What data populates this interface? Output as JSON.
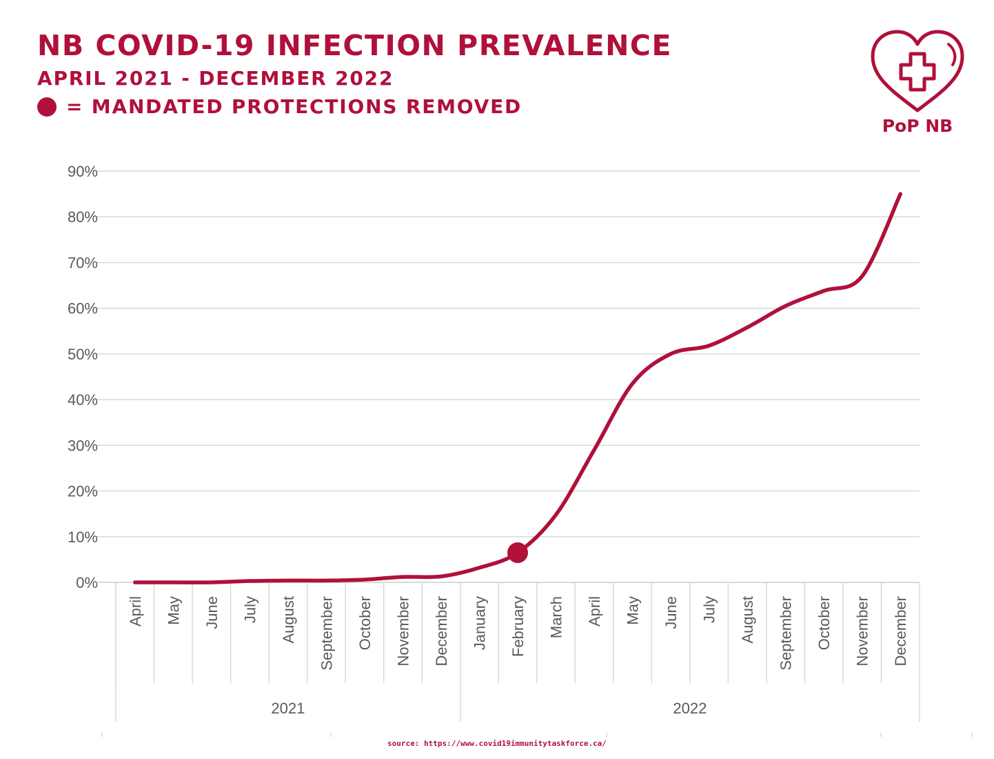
{
  "header": {
    "title": "NB COVID-19 INFECTION PREVALENCE",
    "subtitle": "APRIL 2021 - DECEMBER 2022",
    "legend_text": "= MANDATED PROTECTIONS REMOVED"
  },
  "logo": {
    "text": "PoP NB",
    "icon": "heart-with-medical-cross-icon"
  },
  "source": "source: https://www.covid19immunitytaskforce.ca/",
  "colors": {
    "accent": "#b0103a",
    "grid": "#d9d9d9",
    "axis_text": "#595959",
    "background": "#ffffff"
  },
  "chart_data": {
    "type": "line",
    "title": "NB COVID-19 INFECTION PREVALENCE",
    "subtitle": "APRIL 2021 - DECEMBER 2022",
    "categories": [
      "April",
      "May",
      "June",
      "July",
      "August",
      "September",
      "October",
      "November",
      "December",
      "January",
      "February",
      "March",
      "April",
      "May",
      "June",
      "July",
      "August",
      "September",
      "October",
      "November",
      "December"
    ],
    "years": [
      {
        "label": "2021",
        "months": 9
      },
      {
        "label": "2022",
        "months": 12
      }
    ],
    "series": [
      {
        "values": [
          0.0,
          0.0,
          0.0,
          0.3,
          0.4,
          0.4,
          0.6,
          1.2,
          1.3,
          3.2,
          6.5,
          14.8,
          29.0,
          43.5,
          50.0,
          51.8,
          55.8,
          60.5,
          63.8,
          67.0,
          85.0
        ]
      }
    ],
    "marker": {
      "category_index": 10,
      "value": 6.5,
      "label": "= MANDATED PROTECTIONS REMOVED"
    },
    "yticks": [
      "0%",
      "10%",
      "20%",
      "30%",
      "40%",
      "50%",
      "60%",
      "70%",
      "80%",
      "90%"
    ],
    "ylim": [
      0,
      90
    ],
    "grid": true,
    "legend": "none"
  }
}
